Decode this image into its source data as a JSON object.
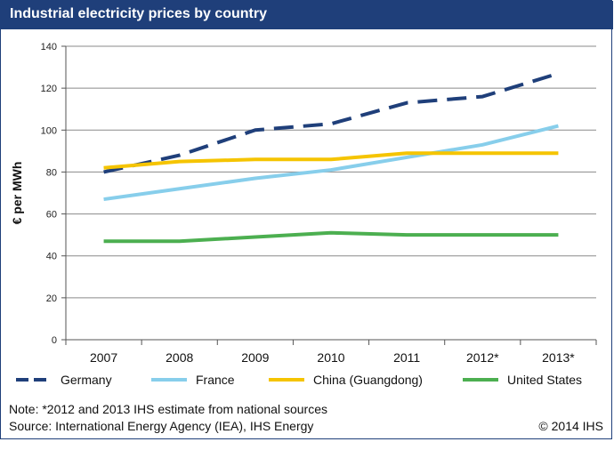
{
  "title": "Industrial electricity prices by country",
  "chart_data": {
    "type": "line",
    "title": "Industrial electricity prices by country",
    "xlabel": "",
    "ylabel": "€ per MWh",
    "ylim": [
      0,
      140
    ],
    "yticks": [
      0,
      20,
      40,
      60,
      80,
      100,
      120,
      140
    ],
    "categories": [
      "2007",
      "2008",
      "2009",
      "2010",
      "2011",
      "2012*",
      "2013*"
    ],
    "grid": true,
    "legend_position": "bottom",
    "series": [
      {
        "name": "Germany",
        "color": "#1f3f7a",
        "style": "dashed",
        "values": [
          80,
          88,
          100,
          103,
          113,
          116,
          127
        ]
      },
      {
        "name": "France",
        "color": "#87ceeb",
        "style": "solid",
        "values": [
          67,
          72,
          77,
          81,
          87,
          93,
          102
        ]
      },
      {
        "name": "China (Guangdong)",
        "color": "#f5c400",
        "style": "solid",
        "values": [
          82,
          85,
          86,
          86,
          89,
          89,
          89
        ]
      },
      {
        "name": "United States",
        "color": "#4caf50",
        "style": "solid",
        "values": [
          47,
          47,
          49,
          51,
          50,
          50,
          50
        ]
      }
    ]
  },
  "notes": {
    "note": "Note: *2012 and 2013 IHS estimate from national sources",
    "source": "Source: International Energy Agency (IEA), IHS Energy",
    "copyright": "© 2014 IHS"
  }
}
